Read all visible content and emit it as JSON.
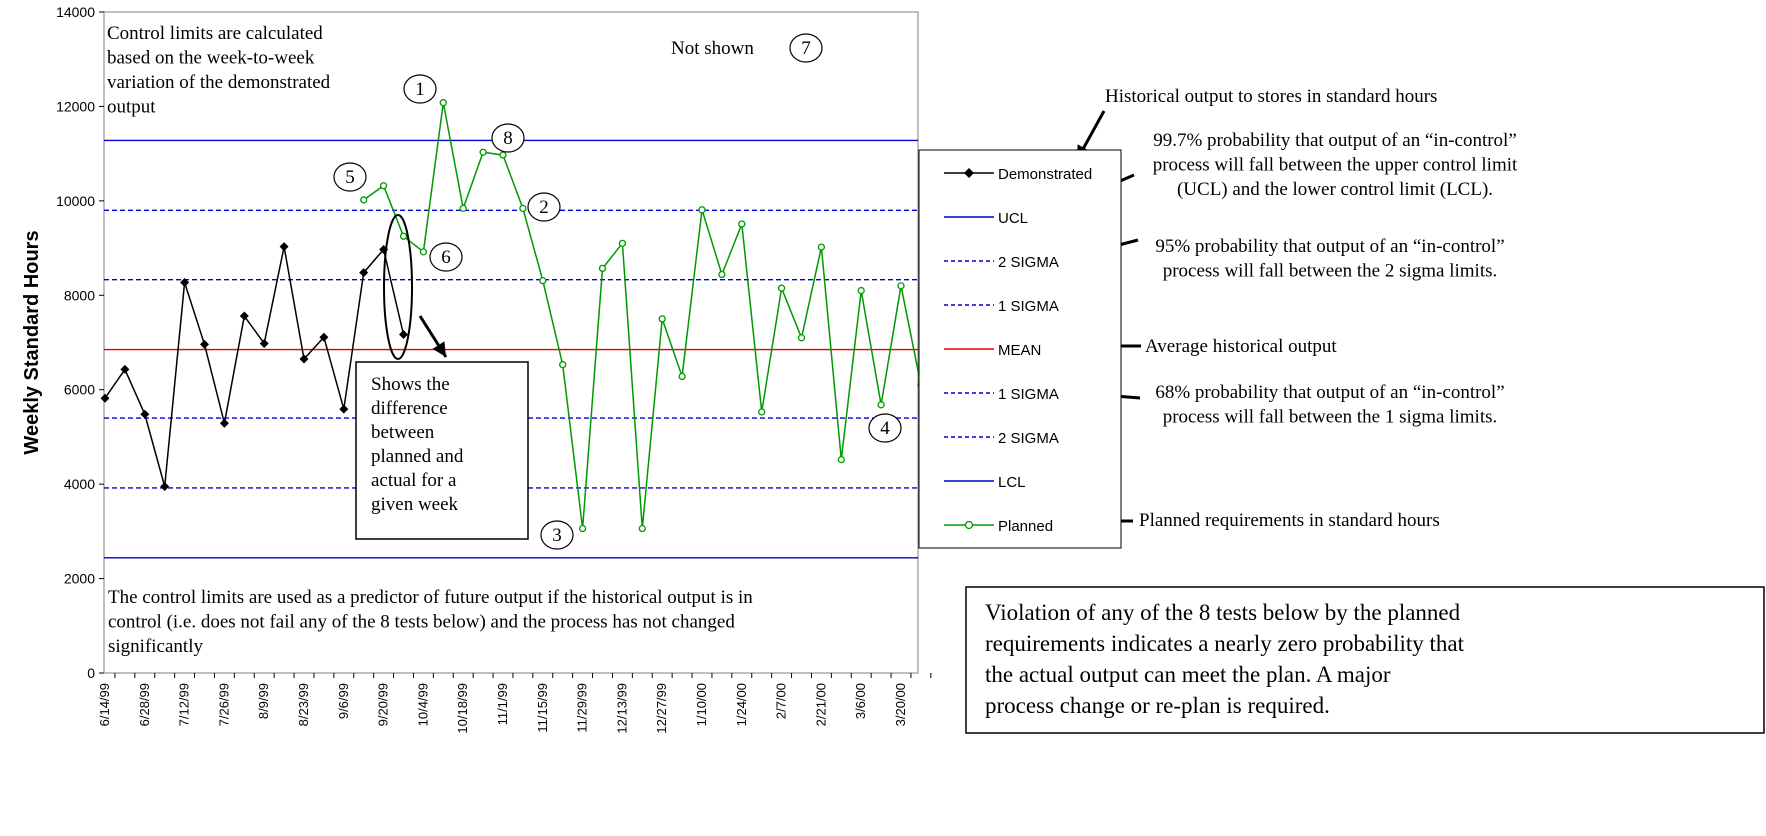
{
  "chart_data": {
    "type": "line",
    "ylabel": "Weekly Standard Hours",
    "xlabel": "",
    "ylim": [
      0,
      14000
    ],
    "yticks": [
      0,
      2000,
      4000,
      6000,
      8000,
      10000,
      12000,
      14000
    ],
    "x_tick_labels": [
      "6/14/99",
      "6/28/99",
      "7/12/99",
      "7/26/99",
      "8/9/99",
      "8/23/99",
      "9/6/99",
      "9/20/99",
      "10/4/99",
      "10/18/99",
      "11/1/99",
      "11/15/99",
      "11/29/99",
      "12/13/99",
      "12/27/99",
      "1/10/00",
      "1/24/00",
      "2/7/00",
      "2/21/00",
      "3/6/00",
      "3/20/00"
    ],
    "weeks": [
      "6/14/99",
      "6/21/99",
      "6/28/99",
      "7/5/99",
      "7/12/99",
      "7/19/99",
      "7/26/99",
      "8/2/99",
      "8/9/99",
      "8/16/99",
      "8/23/99",
      "8/30/99",
      "9/6/99",
      "9/13/99",
      "9/20/99",
      "9/27/99",
      "10/4/99",
      "10/11/99",
      "10/18/99",
      "10/25/99",
      "11/1/99",
      "11/8/99",
      "11/15/99",
      "11/22/99",
      "11/29/99",
      "12/6/99",
      "12/13/99",
      "12/20/99",
      "12/27/99",
      "1/3/00",
      "1/10/00",
      "1/17/00",
      "1/24/00",
      "1/31/00",
      "2/7/00",
      "2/14/00",
      "2/21/00",
      "2/28/00",
      "3/6/00",
      "3/13/00",
      "3/20/00",
      "3/27/00"
    ],
    "legend_position": "right",
    "grid": false,
    "series": [
      {
        "name": "Demonstrated",
        "color": "#000000",
        "marker": "diamond",
        "values": [
          5820,
          6430,
          5480,
          3950,
          8270,
          6960,
          5290,
          7560,
          6980,
          9030,
          6650,
          7110,
          5590,
          8480,
          8970,
          7170
        ]
      },
      {
        "name": "UCL",
        "color": "#0000cc",
        "style": "solid",
        "level": 11280
      },
      {
        "name": "2 SIGMA",
        "color": "#0000cc",
        "style": "dashed",
        "level": 9800
      },
      {
        "name": "1 SIGMA",
        "color": "#0000cc",
        "style": "dashed",
        "level": 8330
      },
      {
        "name": "MEAN",
        "color": "#e00000",
        "style": "solid",
        "level": 6850
      },
      {
        "name": "1 SIGMA",
        "color": "#0000cc",
        "style": "dashed",
        "level": 5400
      },
      {
        "name": "2 SIGMA",
        "color": "#0000cc",
        "style": "dashed",
        "level": 3920
      },
      {
        "name": "LCL",
        "color": "#0000cc",
        "style": "solid",
        "level": 2440
      },
      {
        "name": "Planned",
        "color": "#009900",
        "marker": "circle",
        "start_index": 13,
        "values": [
          10020,
          10320,
          9250,
          8920,
          12080,
          9840,
          11030,
          10970,
          9840,
          8310,
          6530,
          3060,
          8570,
          9100,
          3060,
          7500,
          6280,
          9810,
          8440,
          9510,
          5530,
          8150,
          7100,
          9020,
          4520,
          8100,
          5680,
          8200,
          6100
        ]
      }
    ],
    "circled_numbers": [
      "1",
      "2",
      "3",
      "4",
      "5",
      "6",
      "7",
      "8"
    ],
    "annotations": {
      "top_left": "Control limits are calculated based on the week-to-week variation of the demonstrated output",
      "not_shown": "Not shown",
      "bottom_left": "The control limits are used as a predictor of future output if the historical output is in control (i.e. does not fail any of the 8 tests below) and the process has not changed significantly",
      "difference_box": "Shows the difference between planned and actual for a given week",
      "historical_output": "Historical output to stores in standard hours",
      "ucl_explain": "99.7% probability that output of an “in-control” process will fall between the upper control limit (UCL) and the lower control limit (LCL).",
      "two_sigma_explain": "95% probability that output of an “in-control” process will fall between the 2 sigma limits.",
      "mean_explain": "Average historical output",
      "one_sigma_explain": "68% probability that output of an “in-control” process will fall between the 1 sigma limits.",
      "planned_explain": "Planned requirements in standard hours",
      "violation_box": "Violation of any of the 8 tests below by the planned requirements indicates a nearly zero probability that the actual output can meet the plan.  A major process change or re-plan is required."
    }
  }
}
